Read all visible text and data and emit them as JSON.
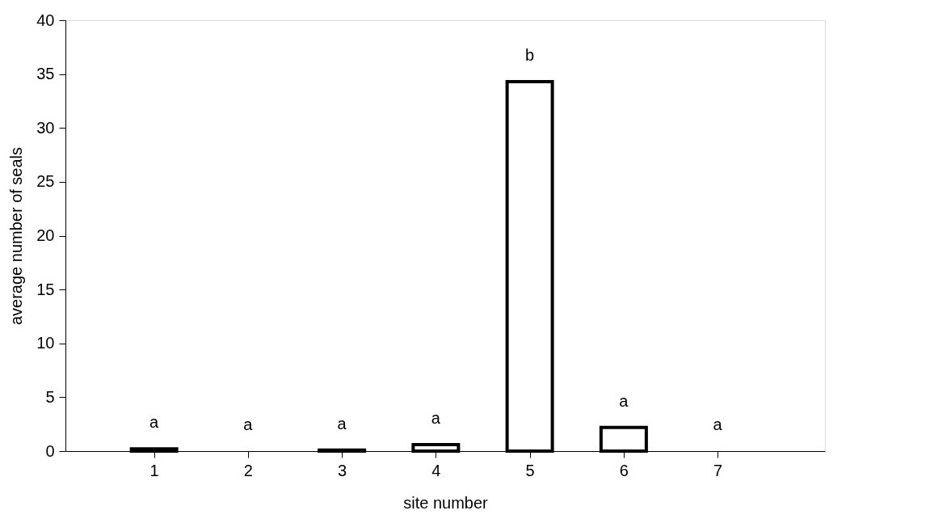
{
  "chart_data": {
    "type": "bar",
    "xlabel": "site number",
    "ylabel": "average number of seals",
    "categories": [
      "1",
      "2",
      "3",
      "4",
      "5",
      "6",
      "7"
    ],
    "values": [
      0.2,
      0,
      0.1,
      0.6,
      34.3,
      2.2,
      0
    ],
    "color": "#ffffff",
    "ylim": [
      0,
      40
    ],
    "yticks": [
      0,
      5,
      10,
      15,
      20,
      25,
      30,
      35,
      40
    ],
    "grid": false,
    "annotations": [
      {
        "text": "a",
        "x": "1",
        "y": 0.2
      },
      {
        "text": "a",
        "x": "2",
        "y": 0
      },
      {
        "text": "a",
        "x": "3",
        "y": 0.1
      },
      {
        "text": "a",
        "x": "4",
        "y": 0.6
      },
      {
        "text": "b",
        "x": "5",
        "y": 34.3
      },
      {
        "text": "a",
        "x": "6",
        "y": 2.2
      },
      {
        "text": "a",
        "x": "7",
        "y": 0
      }
    ]
  }
}
